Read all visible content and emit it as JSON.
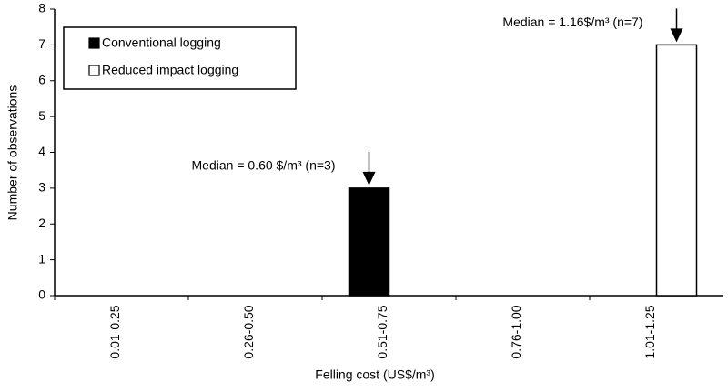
{
  "chart_data": {
    "type": "bar",
    "x_label": "Felling cost (US$/m³)",
    "y_label": "Number of observations",
    "categories": [
      "0.01-0.25",
      "0.26-0.50",
      "0.51-0.75",
      "0.76-1.00",
      "1.01-1.25"
    ],
    "series": [
      {
        "name": "Conventional logging",
        "color": "#000000",
        "values": [
          0,
          0,
          3,
          0,
          0
        ]
      },
      {
        "name": "Reduced impact logging",
        "color": "#ffffff",
        "values": [
          0,
          0,
          0,
          0,
          7
        ]
      }
    ],
    "ylim": [
      0,
      8
    ],
    "yticks": [
      0,
      1,
      2,
      3,
      4,
      5,
      6,
      7,
      8
    ],
    "legend": "upper-left",
    "annotations": [
      "Median = 0.60 $/m³ (n=3)",
      "Median = 1.16$/m³ (n=7)"
    ]
  }
}
